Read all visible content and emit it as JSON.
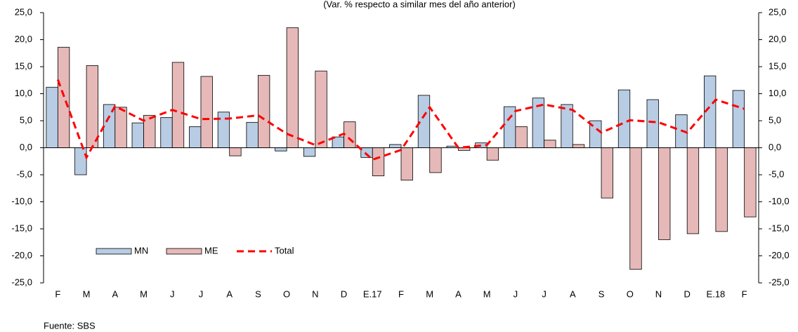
{
  "chart_data": {
    "type": "bar_line",
    "subtitle": "(Var. % respecto a similar mes del año anterior)",
    "source": "Fuente: SBS",
    "categories": [
      "F",
      "M",
      "A",
      "M",
      "J",
      "J",
      "A",
      "S",
      "O",
      "N",
      "D",
      "E.17",
      "F",
      "M",
      "A",
      "M",
      "J",
      "J",
      "A",
      "S",
      "O",
      "N",
      "D",
      "E.18",
      "F"
    ],
    "series": [
      {
        "name": "MN",
        "kind": "bar",
        "color": "#b8cce4",
        "values": [
          11.2,
          -5.0,
          8.0,
          4.6,
          5.6,
          3.9,
          6.6,
          4.7,
          -0.6,
          -1.6,
          2.0,
          -1.8,
          0.6,
          9.7,
          0.3,
          0.9,
          7.6,
          9.2,
          8.0,
          5.0,
          10.7,
          8.9,
          6.1,
          13.3,
          10.6
        ]
      },
      {
        "name": "ME",
        "kind": "bar",
        "color": "#e6b9b8",
        "values": [
          18.6,
          15.2,
          7.5,
          6.0,
          15.8,
          13.2,
          -1.5,
          13.4,
          22.2,
          14.2,
          4.8,
          -5.2,
          -6.0,
          -4.6,
          -0.5,
          -2.3,
          3.9,
          1.4,
          0.6,
          -9.3,
          -22.5,
          -17.0,
          -15.9,
          -15.5,
          -12.8
        ]
      },
      {
        "name": "Total",
        "kind": "line",
        "color": "#ff0000",
        "values": [
          12.6,
          -1.8,
          7.7,
          5.0,
          7.0,
          5.3,
          5.4,
          6.0,
          2.6,
          0.5,
          2.6,
          -2.2,
          -0.4,
          7.5,
          0.0,
          0.5,
          6.8,
          8.0,
          7.0,
          2.8,
          5.1,
          4.7,
          2.8,
          8.9,
          7.2
        ]
      }
    ],
    "ylim": [
      -25,
      25
    ],
    "yticks": [
      {
        "value": 25,
        "label": "25,0"
      },
      {
        "value": 20,
        "label": "20,0"
      },
      {
        "value": 15,
        "label": "15,0"
      },
      {
        "value": 10,
        "label": "10,0"
      },
      {
        "value": 5,
        "label": "5,0"
      },
      {
        "value": 0,
        "label": "0,0"
      },
      {
        "value": -5,
        "label": "-5,0"
      },
      {
        "value": -10,
        "label": "-10,0"
      },
      {
        "value": -15,
        "label": "-15,0"
      },
      {
        "value": -20,
        "label": "-20,0"
      },
      {
        "value": -25,
        "label": "-25,0"
      }
    ],
    "y2lim": [
      -25,
      25
    ],
    "y2ticks": [
      {
        "value": 25,
        "label": "25,0"
      },
      {
        "value": 20,
        "label": "20,0"
      },
      {
        "value": 15,
        "label": "15,0"
      },
      {
        "value": 10,
        "label": "10,0"
      },
      {
        "value": 5,
        "label": "5,0"
      },
      {
        "value": 0,
        "label": "0,0"
      },
      {
        "value": -5,
        "label": "-5,0"
      },
      {
        "value": -10,
        "label": "-10,0"
      },
      {
        "value": -15,
        "label": "-15,0"
      },
      {
        "value": -20,
        "label": "-20,0"
      },
      {
        "value": -25,
        "label": "-25,0"
      }
    ],
    "legend": "lower left"
  }
}
